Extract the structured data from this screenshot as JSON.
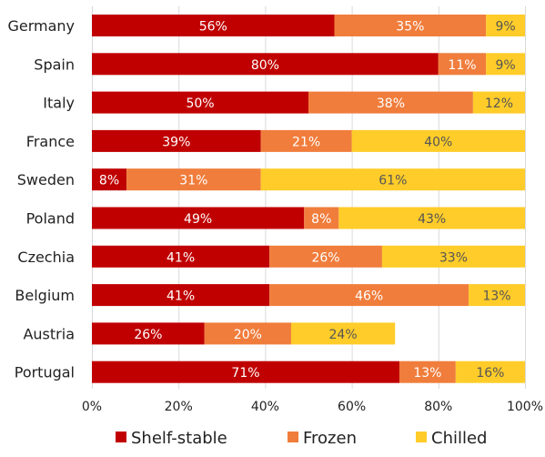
{
  "chart_data": {
    "type": "bar",
    "orientation": "horizontal",
    "stacked": true,
    "categories": [
      "Germany",
      "Spain",
      "Italy",
      "France",
      "Sweden",
      "Poland",
      "Czechia",
      "Belgium",
      "Austria",
      "Portugal"
    ],
    "series": [
      {
        "name": "Shelf-stable",
        "color": "#c00000",
        "values": [
          56,
          80,
          50,
          39,
          8,
          49,
          41,
          41,
          26,
          71
        ],
        "labels": [
          "56%",
          "80%",
          "50%",
          "39%",
          "8%",
          "49%",
          "41%",
          "41%",
          "26%",
          "71%"
        ],
        "label_color": "#ffffff"
      },
      {
        "name": "Frozen",
        "color": "#f07d3c",
        "values": [
          35,
          11,
          38,
          21,
          31,
          8,
          26,
          46,
          20,
          13
        ],
        "labels": [
          "35%",
          "11%",
          "38%",
          "21%",
          "31%",
          "8%",
          "26%",
          "46%",
          "20%",
          "13%"
        ],
        "label_color": "#ffffff"
      },
      {
        "name": "Chilled",
        "color": "#ffcc29",
        "values": [
          9,
          9,
          12,
          40,
          61,
          43,
          33,
          13,
          24,
          16
        ],
        "labels": [
          "9%",
          "9%",
          "12%",
          "40%",
          "61%",
          "43%",
          "33%",
          "13%",
          "24%",
          "16%"
        ],
        "label_color": "#555555"
      }
    ],
    "xlim": [
      0,
      100
    ],
    "x_ticks": [
      "0%",
      "20%",
      "40%",
      "60%",
      "80%",
      "100%"
    ],
    "x_tick_values": [
      0,
      20,
      40,
      60,
      80,
      100
    ],
    "grid": "vertical",
    "legend": "bottom"
  }
}
